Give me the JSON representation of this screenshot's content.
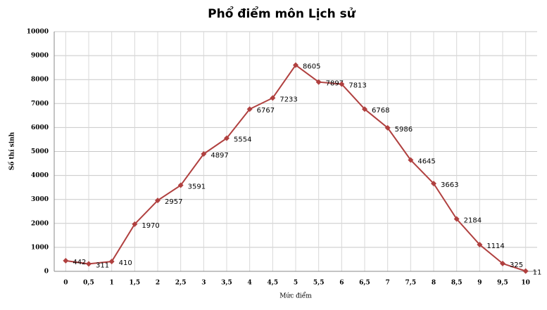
{
  "chart_data": {
    "type": "line",
    "title": "Phổ điểm môn Lịch sử",
    "x_label": "Mức điểm",
    "y_label": "Số thí sinh",
    "categories": [
      "0",
      "0,5",
      "1",
      "1,5",
      "2",
      "2,5",
      "3",
      "3,5",
      "4",
      "4,5",
      "5",
      "5,5",
      "6",
      "6,5",
      "7",
      "7,5",
      "8",
      "8,5",
      "9",
      "9,5",
      "10"
    ],
    "values": [
      442,
      311,
      410,
      1970,
      2957,
      3591,
      4897,
      5554,
      6767,
      7233,
      8605,
      7897,
      7813,
      6768,
      5986,
      4645,
      3663,
      2184,
      1114,
      325,
      11
    ],
    "color": "#b0403f",
    "ylim": [
      0,
      10000
    ],
    "yticks": [
      0,
      1000,
      2000,
      3000,
      4000,
      5000,
      6000,
      7000,
      8000,
      9000,
      10000
    ],
    "grid": true
  }
}
